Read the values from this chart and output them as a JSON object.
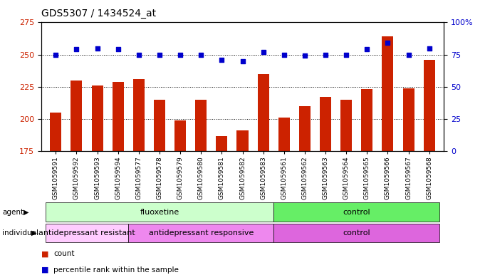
{
  "title": "GDS5307 / 1434524_at",
  "samples": [
    "GSM1059591",
    "GSM1059592",
    "GSM1059593",
    "GSM1059594",
    "GSM1059577",
    "GSM1059578",
    "GSM1059579",
    "GSM1059580",
    "GSM1059581",
    "GSM1059582",
    "GSM1059583",
    "GSM1059561",
    "GSM1059562",
    "GSM1059563",
    "GSM1059564",
    "GSM1059565",
    "GSM1059566",
    "GSM1059567",
    "GSM1059568"
  ],
  "bar_values": [
    205,
    230,
    226,
    229,
    231,
    215,
    199,
    215,
    187,
    191,
    235,
    201,
    210,
    217,
    215,
    223,
    264,
    224,
    246
  ],
  "dot_values": [
    75,
    79,
    80,
    79,
    75,
    75,
    75,
    75,
    71,
    70,
    77,
    75,
    74,
    75,
    75,
    79,
    84,
    75,
    80
  ],
  "ylim_left": [
    175,
    275
  ],
  "ylim_right": [
    0,
    100
  ],
  "yticks_left": [
    175,
    200,
    225,
    250,
    275
  ],
  "yticks_right": [
    0,
    25,
    50,
    75,
    100
  ],
  "bar_color": "#cc2200",
  "dot_color": "#0000cc",
  "grid_color": "black",
  "agent_groups": [
    {
      "label": "fluoxetine",
      "start": 0,
      "end": 11,
      "color": "#ccffcc"
    },
    {
      "label": "control",
      "start": 11,
      "end": 19,
      "color": "#66ee66"
    }
  ],
  "individual_groups": [
    {
      "label": "antidepressant resistant",
      "start": 0,
      "end": 4,
      "color": "#ffccff"
    },
    {
      "label": "antidepressant responsive",
      "start": 4,
      "end": 11,
      "color": "#ee88ee"
    },
    {
      "label": "control",
      "start": 11,
      "end": 19,
      "color": "#dd66dd"
    }
  ],
  "background_color": "#ffffff",
  "title_fontsize": 10,
  "tick_fontsize": 6.5,
  "band_fontsize": 8
}
